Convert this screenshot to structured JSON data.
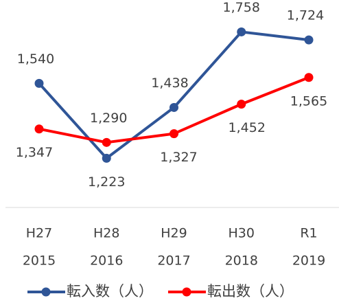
{
  "chart_data": {
    "type": "line",
    "categories": [
      [
        "H27",
        "2015"
      ],
      [
        "H28",
        "2016"
      ],
      [
        "H29",
        "2017"
      ],
      [
        "H30",
        "2018"
      ],
      [
        "R1",
        "2019"
      ]
    ],
    "series": [
      {
        "name": "転入数（人）",
        "color": "#2f5597",
        "values": [
          1540,
          1223,
          1438,
          1758,
          1724
        ],
        "value_labels": [
          "1,540",
          "1,223",
          "1,438",
          "1,758",
          "1,724"
        ]
      },
      {
        "name": "転出数（人）",
        "color": "#ff0000",
        "values": [
          1347,
          1290,
          1327,
          1452,
          1565
        ],
        "value_labels": [
          "1,347",
          "1,290",
          "1,327",
          "1,452",
          "1,565"
        ]
      }
    ],
    "ylim": [
      1000,
      1800
    ],
    "legend": "bottom"
  }
}
